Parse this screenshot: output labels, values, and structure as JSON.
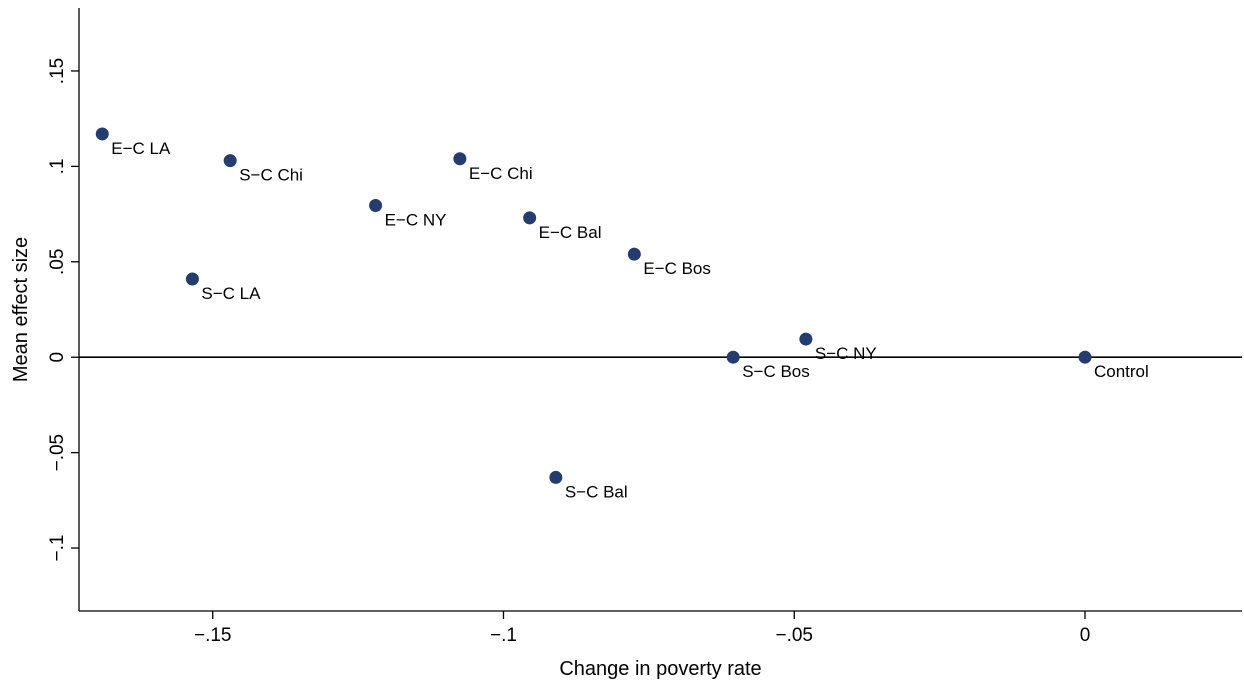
{
  "chart_data": {
    "type": "scatter",
    "title": "",
    "xlabel": "Change in poverty rate",
    "ylabel": "Mean effect size",
    "xlim": [
      -0.173,
      0.027
    ],
    "ylim": [
      -0.133,
      0.183
    ],
    "x_ticks": [
      -0.15,
      -0.1,
      -0.05,
      0
    ],
    "x_tick_labels": [
      "-.15",
      "-.1",
      "-.05",
      "0"
    ],
    "y_ticks": [
      -0.1,
      -0.05,
      0,
      0.05,
      0.1,
      0.15
    ],
    "y_tick_labels": [
      "-.1",
      "-.05",
      "0",
      ".05",
      ".1",
      ".15"
    ],
    "reference_line": {
      "axis": "y",
      "value": 0
    },
    "grid": false,
    "marker_color": "#243c6e",
    "points": [
      {
        "label": "E−C LA",
        "x": -0.169,
        "y": 0.117
      },
      {
        "label": "S−C Chi",
        "x": -0.147,
        "y": 0.103
      },
      {
        "label": "E−C Chi",
        "x": -0.1075,
        "y": 0.104
      },
      {
        "label": "E−C NY",
        "x": -0.122,
        "y": 0.0795
      },
      {
        "label": "E−C Bal",
        "x": -0.0955,
        "y": 0.073
      },
      {
        "label": "S−C LA",
        "x": -0.1535,
        "y": 0.041
      },
      {
        "label": "E−C Bos",
        "x": -0.0775,
        "y": 0.054
      },
      {
        "label": "S−C NY",
        "x": -0.048,
        "y": 0.0095
      },
      {
        "label": "S−C Bos",
        "x": -0.0605,
        "y": 0.0
      },
      {
        "label": "Control",
        "x": 0.0,
        "y": 0.0
      },
      {
        "label": "S−C Bal",
        "x": -0.091,
        "y": -0.063
      }
    ]
  }
}
